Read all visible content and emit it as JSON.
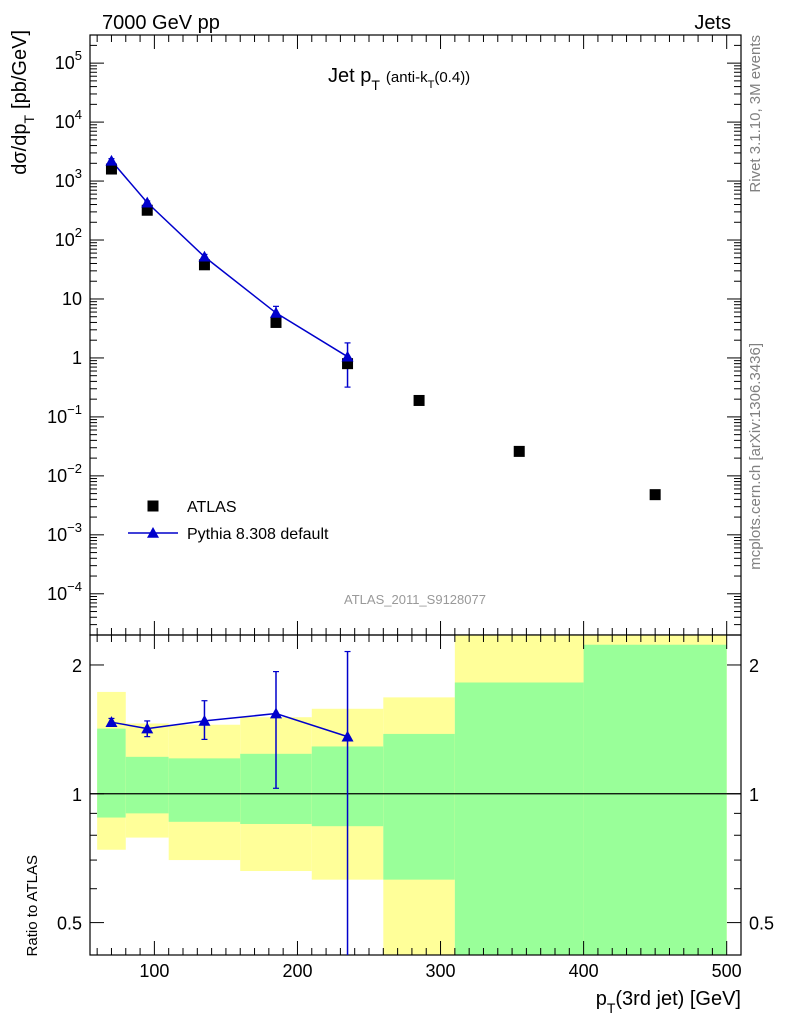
{
  "header": {
    "left": "7000 GeV pp",
    "right": "Jets",
    "side_top": "Rivet 3.1.10,  3M events",
    "side_bottom": "mcplots.cern.ch [arXiv:1306.3436]"
  },
  "colors": {
    "data": "#000000",
    "mc": "#0000cc",
    "band_inner": "#99ff99",
    "band_outer": "#ffff99"
  },
  "chart_data": [
    {
      "type": "scatter",
      "title": "Jet p_T (anti-k_T(0.4))",
      "title_main": "Jet p",
      "title_sub1": "T",
      "title_paren": "(anti-k",
      "title_sub2": "T",
      "title_end": "(0.4))",
      "ylabel": "dσ/dp_T [pb/GeV]",
      "ylabel_main": "dσ/dp",
      "ylabel_sub": "T",
      "ylabel_unit": "[pb/GeV]",
      "yscale": "log",
      "ylim": [
        2e-05,
        300000
      ],
      "xlim": [
        55,
        510
      ],
      "watermark": "ATLAS_2011_S9128077",
      "y_tick_labels": [
        {
          "value": 100000,
          "base": "10",
          "exp": "5"
        },
        {
          "value": 10000,
          "base": "10",
          "exp": "4"
        },
        {
          "value": 1000,
          "base": "10",
          "exp": "3"
        },
        {
          "value": 100,
          "base": "10",
          "exp": "2"
        },
        {
          "value": 10,
          "base": "10",
          "exp": ""
        },
        {
          "value": 1,
          "base": "1",
          "exp": ""
        },
        {
          "value": 0.1,
          "base": "10",
          "exp": "−1"
        },
        {
          "value": 0.01,
          "base": "10",
          "exp": "−2"
        },
        {
          "value": 0.001,
          "base": "10",
          "exp": "−3"
        },
        {
          "value": 0.0001,
          "base": "10",
          "exp": "−4"
        }
      ],
      "legend": {
        "position": "bottom-left",
        "entries": [
          "ATLAS",
          "Pythia 8.308 default"
        ]
      },
      "series": [
        {
          "name": "ATLAS",
          "marker": "square",
          "x": [
            70,
            95,
            135,
            185,
            235,
            285,
            355,
            450
          ],
          "y": [
            1600,
            320,
            38,
            4.0,
            0.8,
            0.19,
            0.026,
            0.0048
          ]
        },
        {
          "name": "Pythia 8.308 default",
          "marker": "triangle",
          "x": [
            70,
            95,
            135,
            185,
            235
          ],
          "y": [
            2200,
            430,
            52,
            5.8,
            1.05
          ],
          "yerr_low": [
            2000,
            400,
            47,
            4.6,
            0.32
          ],
          "yerr_high": [
            2400,
            460,
            57,
            7.5,
            1.8
          ]
        }
      ]
    },
    {
      "type": "line",
      "ylabel": "Ratio to ATLAS",
      "yscale": "log",
      "ylim": [
        0.42,
        2.35
      ],
      "xlim": [
        55,
        510
      ],
      "xlabel": "p_T(3rd jet) [GeV]",
      "xlabel_main": "p",
      "xlabel_sub": "T",
      "xlabel_rest": "(3rd jet) [GeV]",
      "x_ticks": [
        100,
        200,
        300,
        400,
        500
      ],
      "y_ticks": [
        0.5,
        1,
        2
      ],
      "bands": [
        {
          "x0": 60,
          "x1": 80,
          "inner": [
            0.88,
            1.42
          ],
          "outer": [
            0.74,
            1.73
          ]
        },
        {
          "x0": 80,
          "x1": 110,
          "inner": [
            0.9,
            1.22
          ],
          "outer": [
            0.79,
            1.46
          ]
        },
        {
          "x0": 110,
          "x1": 160,
          "inner": [
            0.86,
            1.21
          ],
          "outer": [
            0.7,
            1.45
          ]
        },
        {
          "x0": 160,
          "x1": 210,
          "inner": [
            0.85,
            1.24
          ],
          "outer": [
            0.66,
            1.51
          ]
        },
        {
          "x0": 210,
          "x1": 260,
          "inner": [
            0.84,
            1.29
          ],
          "outer": [
            0.63,
            1.58
          ]
        },
        {
          "x0": 260,
          "x1": 310,
          "inner": [
            0.63,
            1.38
          ],
          "outer": [
            0.3,
            1.68
          ]
        },
        {
          "x0": 310,
          "x1": 400,
          "inner": [
            0.3,
            1.82
          ],
          "outer": [
            0.45,
            3.0
          ]
        },
        {
          "x0": 400,
          "x1": 500,
          "inner": [
            0.3,
            2.23
          ],
          "outer": [
            0.3,
            3.0
          ]
        }
      ],
      "series": [
        {
          "name": "Pythia 8.308 default",
          "x": [
            70,
            95,
            135,
            185,
            235
          ],
          "y": [
            1.47,
            1.42,
            1.48,
            1.54,
            1.36
          ],
          "yerr_low": [
            1.44,
            1.36,
            1.34,
            1.03,
            0.3
          ],
          "yerr_high": [
            1.5,
            1.48,
            1.65,
            1.93,
            2.15
          ]
        }
      ]
    }
  ]
}
